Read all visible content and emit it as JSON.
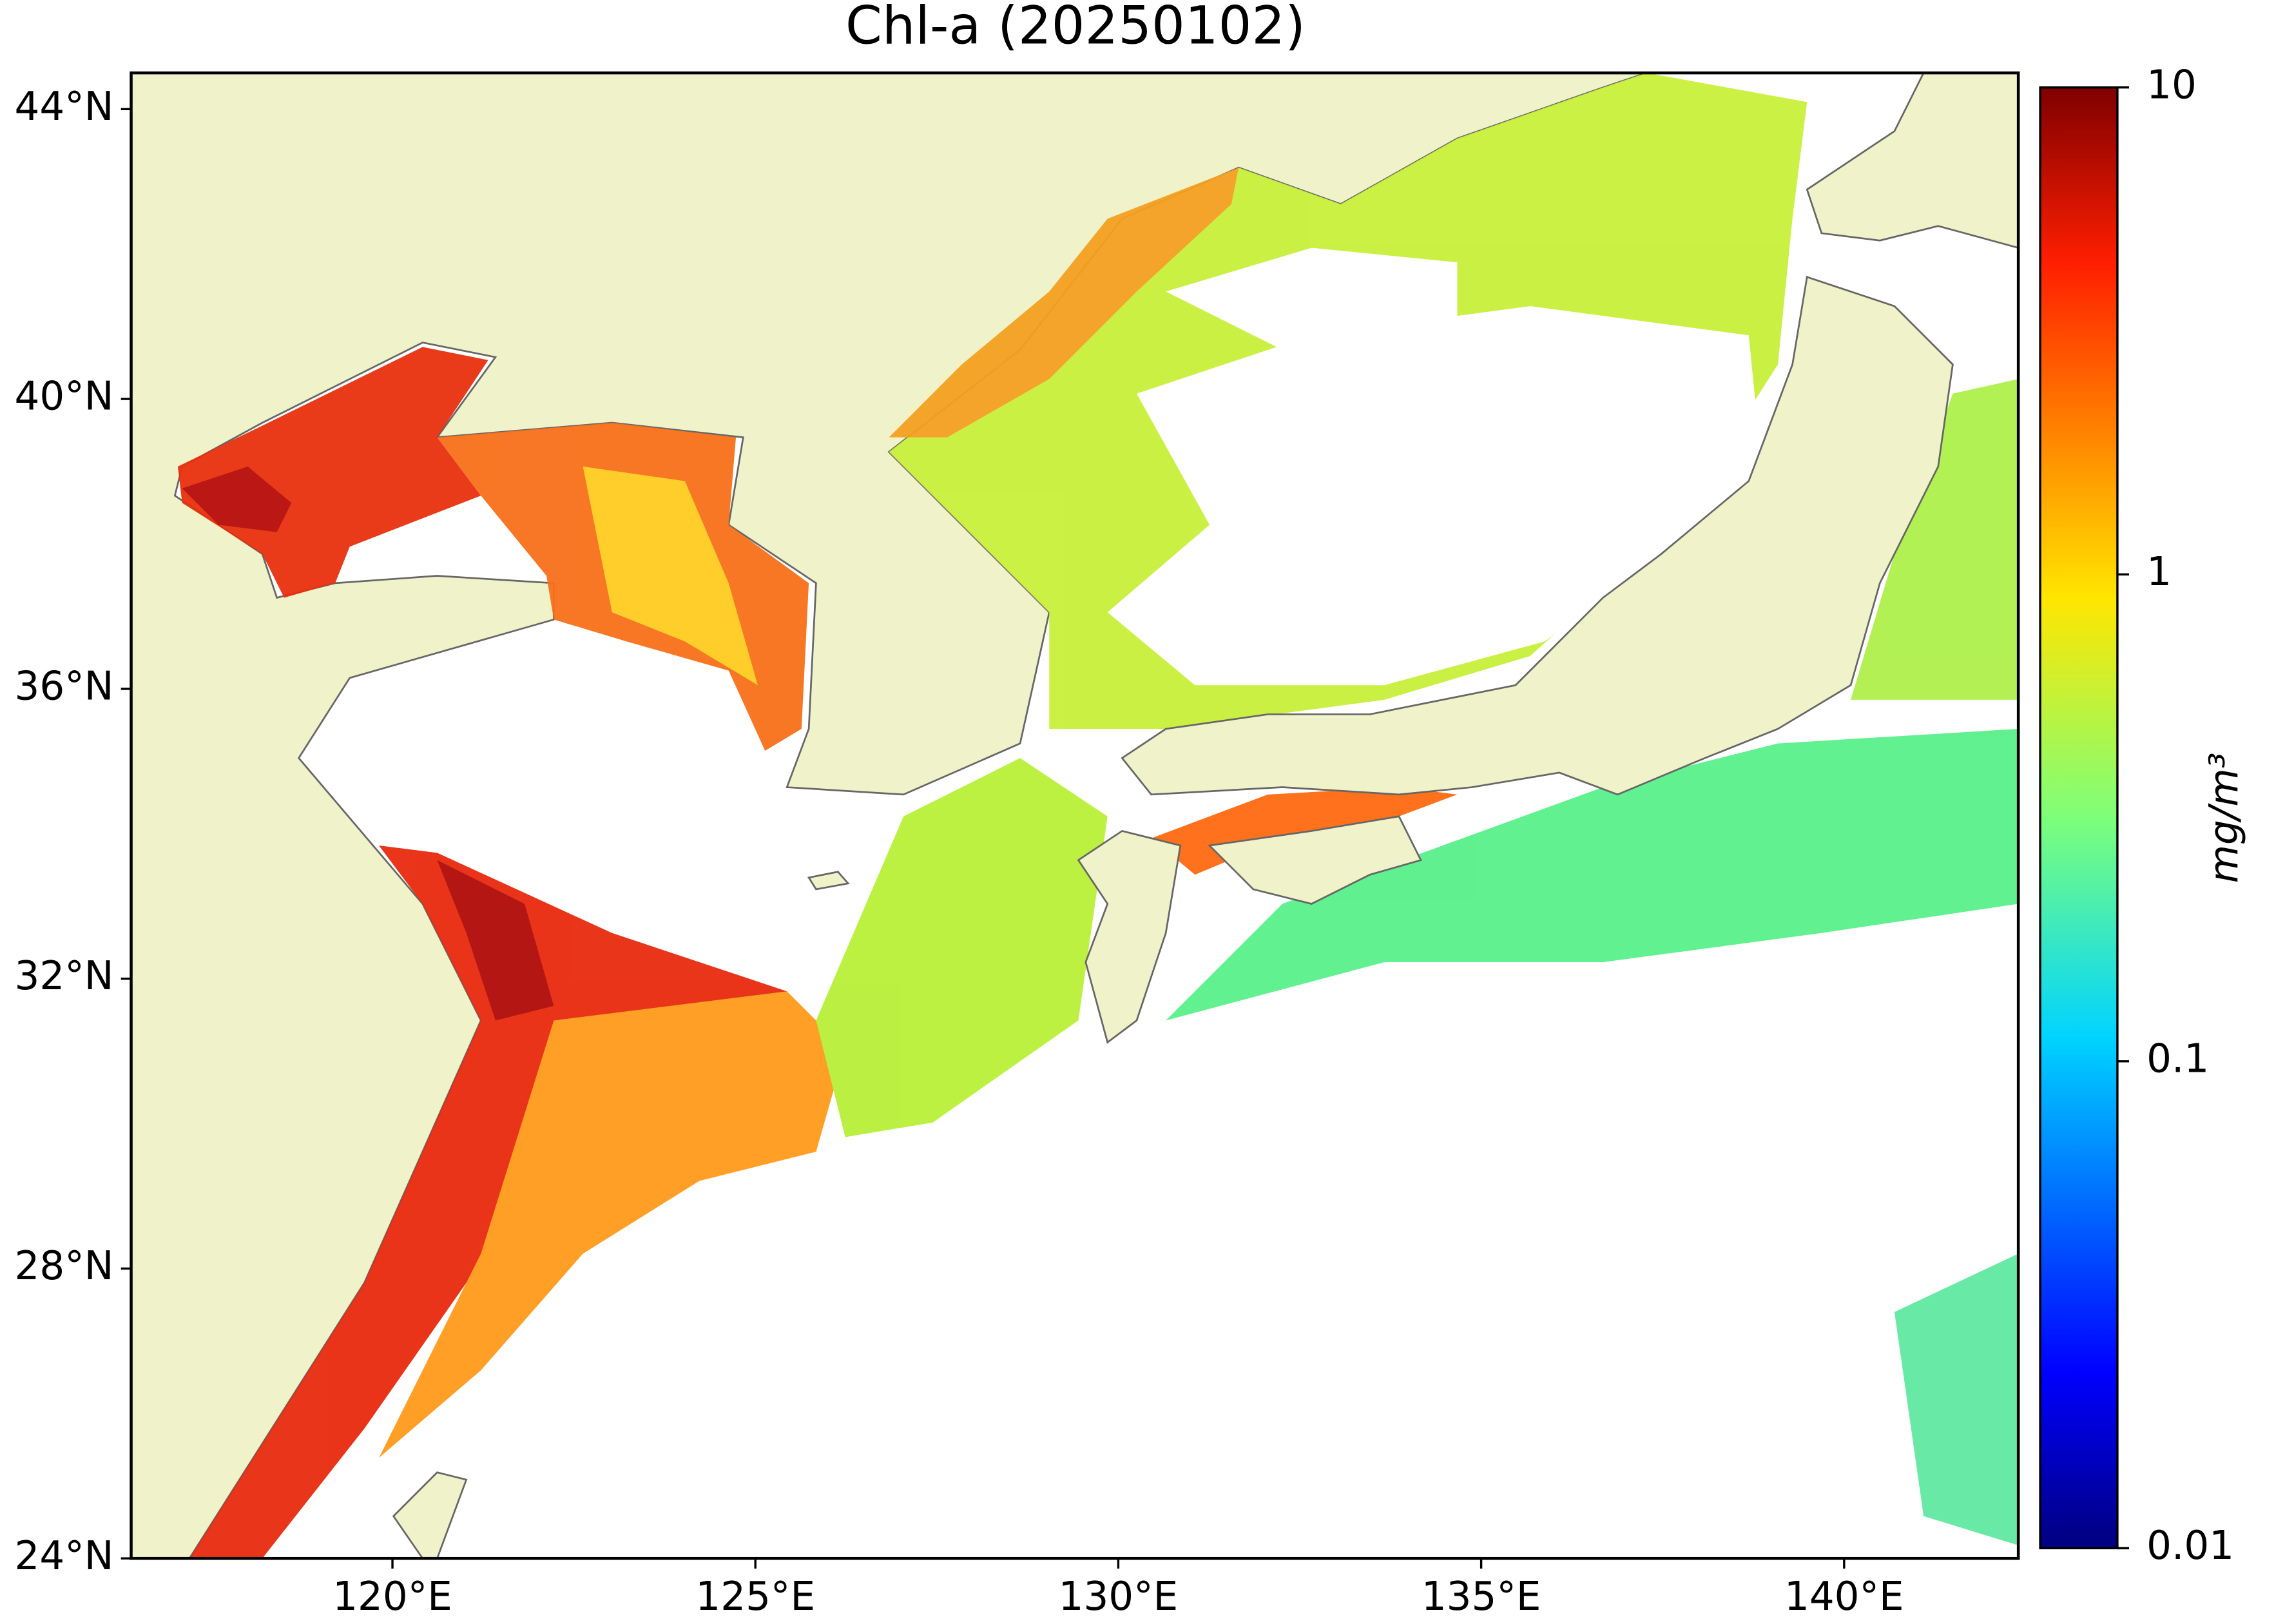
{
  "map": {
    "title": "Chl-a (20250102)",
    "lonlim": [
      116.4,
      142.4
    ],
    "latlim": [
      24,
      44.5
    ],
    "lon_ticks": [
      {
        "value": 120,
        "label": "120°E"
      },
      {
        "value": 125,
        "label": "125°E"
      },
      {
        "value": 130,
        "label": "130°E"
      },
      {
        "value": 135,
        "label": "135°E"
      },
      {
        "value": 140,
        "label": "140°E"
      }
    ],
    "lat_ticks": [
      {
        "value": 24,
        "label": "24°N"
      },
      {
        "value": 28,
        "label": "28°N"
      },
      {
        "value": 32,
        "label": "32°N"
      },
      {
        "value": 36,
        "label": "36°N"
      },
      {
        "value": 40,
        "label": "40°N"
      },
      {
        "value": 44,
        "label": "44°N"
      }
    ],
    "colorbar": {
      "label": "mg/m³",
      "lim": [
        0.01,
        10
      ],
      "log": true,
      "ticks": [
        0.01,
        0.1,
        1,
        10
      ]
    }
  }
}
